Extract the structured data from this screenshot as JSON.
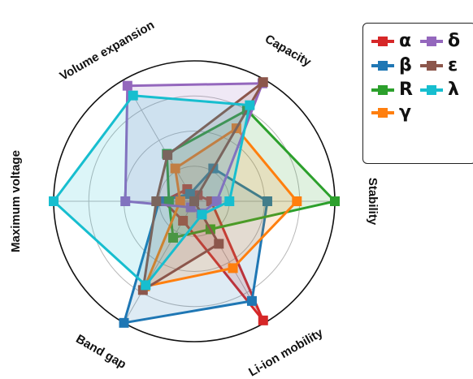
{
  "chart_data": {
    "type": "radar",
    "axes": [
      "Stability",
      "Capacity",
      "Volume expansion",
      "Maximum voltage",
      "Band gap",
      "Li-ion mobility"
    ],
    "range": [
      0,
      1
    ],
    "grid": true,
    "legend_position": "top-right",
    "series": [
      {
        "name": "α",
        "color": "#d62728",
        "values": [
          0.12,
          0.05,
          0.1,
          0.22,
          0.16,
          0.98
        ]
      },
      {
        "name": "β",
        "color": "#1f77b4",
        "values": [
          0.52,
          0.27,
          0.06,
          0.25,
          1.0,
          0.82
        ]
      },
      {
        "name": "R",
        "color": "#2ca02c",
        "values": [
          1.0,
          0.75,
          0.39,
          0.18,
          0.3,
          0.23
        ]
      },
      {
        "name": "γ",
        "color": "#ff7f0e",
        "values": [
          0.73,
          0.6,
          0.27,
          0.1,
          0.7,
          0.55
        ]
      },
      {
        "name": "δ",
        "color": "#9467bd",
        "values": [
          0.16,
          0.97,
          0.95,
          0.49,
          0.05,
          0.1
        ]
      },
      {
        "name": "ε",
        "color": "#8c564b",
        "values": [
          0.0,
          0.98,
          0.38,
          0.27,
          0.73,
          0.35
        ]
      },
      {
        "name": "λ",
        "color": "#17becf",
        "values": [
          0.25,
          0.79,
          0.87,
          1.0,
          0.69,
          0.11
        ]
      }
    ]
  }
}
